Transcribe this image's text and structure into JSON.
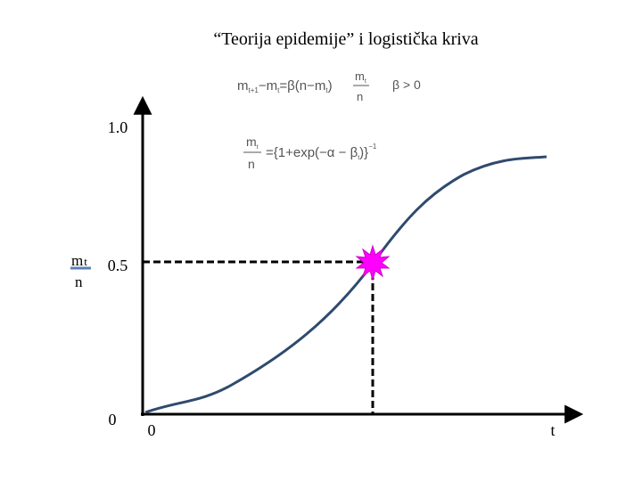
{
  "title": "“Teorija epidemije” i logistička kriva",
  "formula_1": {
    "parts": [
      "m",
      "t+1",
      "−m",
      "t",
      "=β(n−m",
      "t",
      ")"
    ],
    "fraction_num": "m",
    "fraction_num_sub": "t",
    "fraction_den": "n",
    "condition": "β > 0"
  },
  "formula_2": {
    "fraction_num": "m",
    "fraction_num_sub": "t",
    "fraction_den": "n",
    "body": "={1+exp(−α − β",
    "body_sub": "t",
    "close": ")}",
    "power": "−1"
  },
  "y_axis": {
    "label_num": "m",
    "label_sub": "t",
    "label_den": "n",
    "ticks": [
      "1.0",
      "0.5",
      "0"
    ]
  },
  "x_axis": {
    "ticks": [
      "0",
      "t"
    ]
  }
}
